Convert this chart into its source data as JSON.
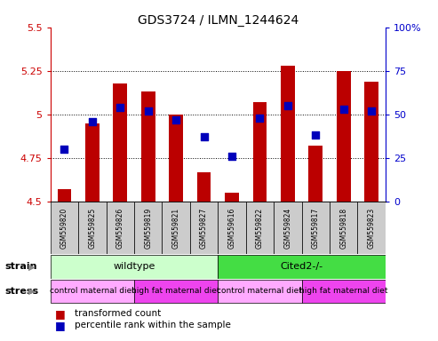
{
  "title": "GDS3724 / ILMN_1244624",
  "samples": [
    "GSM559820",
    "GSM559825",
    "GSM559826",
    "GSM559819",
    "GSM559821",
    "GSM559827",
    "GSM559616",
    "GSM559822",
    "GSM559824",
    "GSM559817",
    "GSM559818",
    "GSM559823"
  ],
  "red_values": [
    4.57,
    4.95,
    5.18,
    5.13,
    5.0,
    4.67,
    4.55,
    5.07,
    5.28,
    4.82,
    5.25,
    5.19
  ],
  "blue_values": [
    30,
    46,
    54,
    52,
    47,
    37,
    26,
    48,
    55,
    38,
    53,
    52
  ],
  "ylim_left": [
    4.5,
    5.5
  ],
  "ylim_right": [
    0,
    100
  ],
  "yticks_left": [
    4.5,
    4.75,
    5.0,
    5.25,
    5.5
  ],
  "yticks_right": [
    0,
    25,
    50,
    75,
    100
  ],
  "ytick_labels_left": [
    "4.5",
    "4.75",
    "5",
    "5.25",
    "5.5"
  ],
  "ytick_labels_right": [
    "0",
    "25",
    "50",
    "75",
    "100%"
  ],
  "dotted_lines": [
    4.75,
    5.0,
    5.25
  ],
  "bar_color": "#bb0000",
  "dot_color": "#0000bb",
  "bar_width": 0.5,
  "dot_size": 40,
  "strain_labels": [
    {
      "text": "wildtype",
      "start": 0,
      "end": 5,
      "color": "#ccffcc"
    },
    {
      "text": "Cited2-/-",
      "start": 6,
      "end": 11,
      "color": "#44dd44"
    }
  ],
  "stress_labels": [
    {
      "text": "control maternal diet",
      "start": 0,
      "end": 2,
      "color": "#ffaaff"
    },
    {
      "text": "high fat maternal diet",
      "start": 3,
      "end": 5,
      "color": "#ee44ee"
    },
    {
      "text": "control maternal diet",
      "start": 6,
      "end": 8,
      "color": "#ffaaff"
    },
    {
      "text": "high fat maternal diet",
      "start": 9,
      "end": 11,
      "color": "#ee44ee"
    }
  ],
  "strain_row_label": "strain",
  "stress_row_label": "stress",
  "legend_red": "transformed count",
  "legend_blue": "percentile rank within the sample",
  "axis_color_left": "#cc0000",
  "axis_color_right": "#0000cc",
  "sample_bg_color": "#cccccc",
  "bg_color": "#ffffff",
  "plot_bg_color": "#ffffff"
}
